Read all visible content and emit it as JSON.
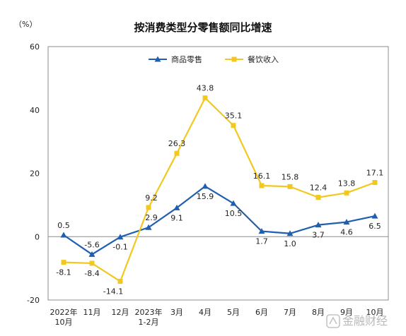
{
  "chart_data": {
    "type": "line",
    "title": "按消费类型分零售额同比增速",
    "unit": "（%）",
    "categories": [
      [
        "2022年",
        "10月"
      ],
      [
        "11月"
      ],
      [
        "12月"
      ],
      [
        "2023年",
        "1-2月"
      ],
      [
        "3月"
      ],
      [
        "4月"
      ],
      [
        "5月"
      ],
      [
        "6月"
      ],
      [
        "7月"
      ],
      [
        "8月"
      ],
      [
        "9月"
      ],
      [
        "10月"
      ]
    ],
    "series": [
      {
        "name": "商品零售",
        "color": "#1f5fb0",
        "marker": "triangle",
        "values": [
          0.5,
          -5.6,
          -0.1,
          2.9,
          9.1,
          15.9,
          10.5,
          1.7,
          1.0,
          3.7,
          4.6,
          6.5
        ],
        "labels": [
          "0.5",
          "-5.6",
          "-0.1",
          "2.9",
          "9.1",
          "15.9",
          "10.5",
          "1.7",
          "1.0",
          "3.7",
          "4.6",
          "6.5"
        ]
      },
      {
        "name": "餐饮收入",
        "color": "#f2c81e",
        "marker": "square",
        "values": [
          -8.1,
          -8.4,
          -14.1,
          9.2,
          26.3,
          43.8,
          35.1,
          16.1,
          15.8,
          12.4,
          13.8,
          17.1
        ],
        "labels": [
          "-8.1",
          "-8.4",
          "-14.1",
          "9.2",
          "26.3",
          "43.8",
          "35.1",
          "16.1",
          "15.8",
          "12.4",
          "13.8",
          "17.1"
        ]
      }
    ],
    "ylim": [
      -20,
      60
    ],
    "yticks": [
      -20,
      0,
      20,
      40,
      60
    ],
    "grid": false,
    "legend_position": "top-left"
  },
  "watermark": "金融财经"
}
